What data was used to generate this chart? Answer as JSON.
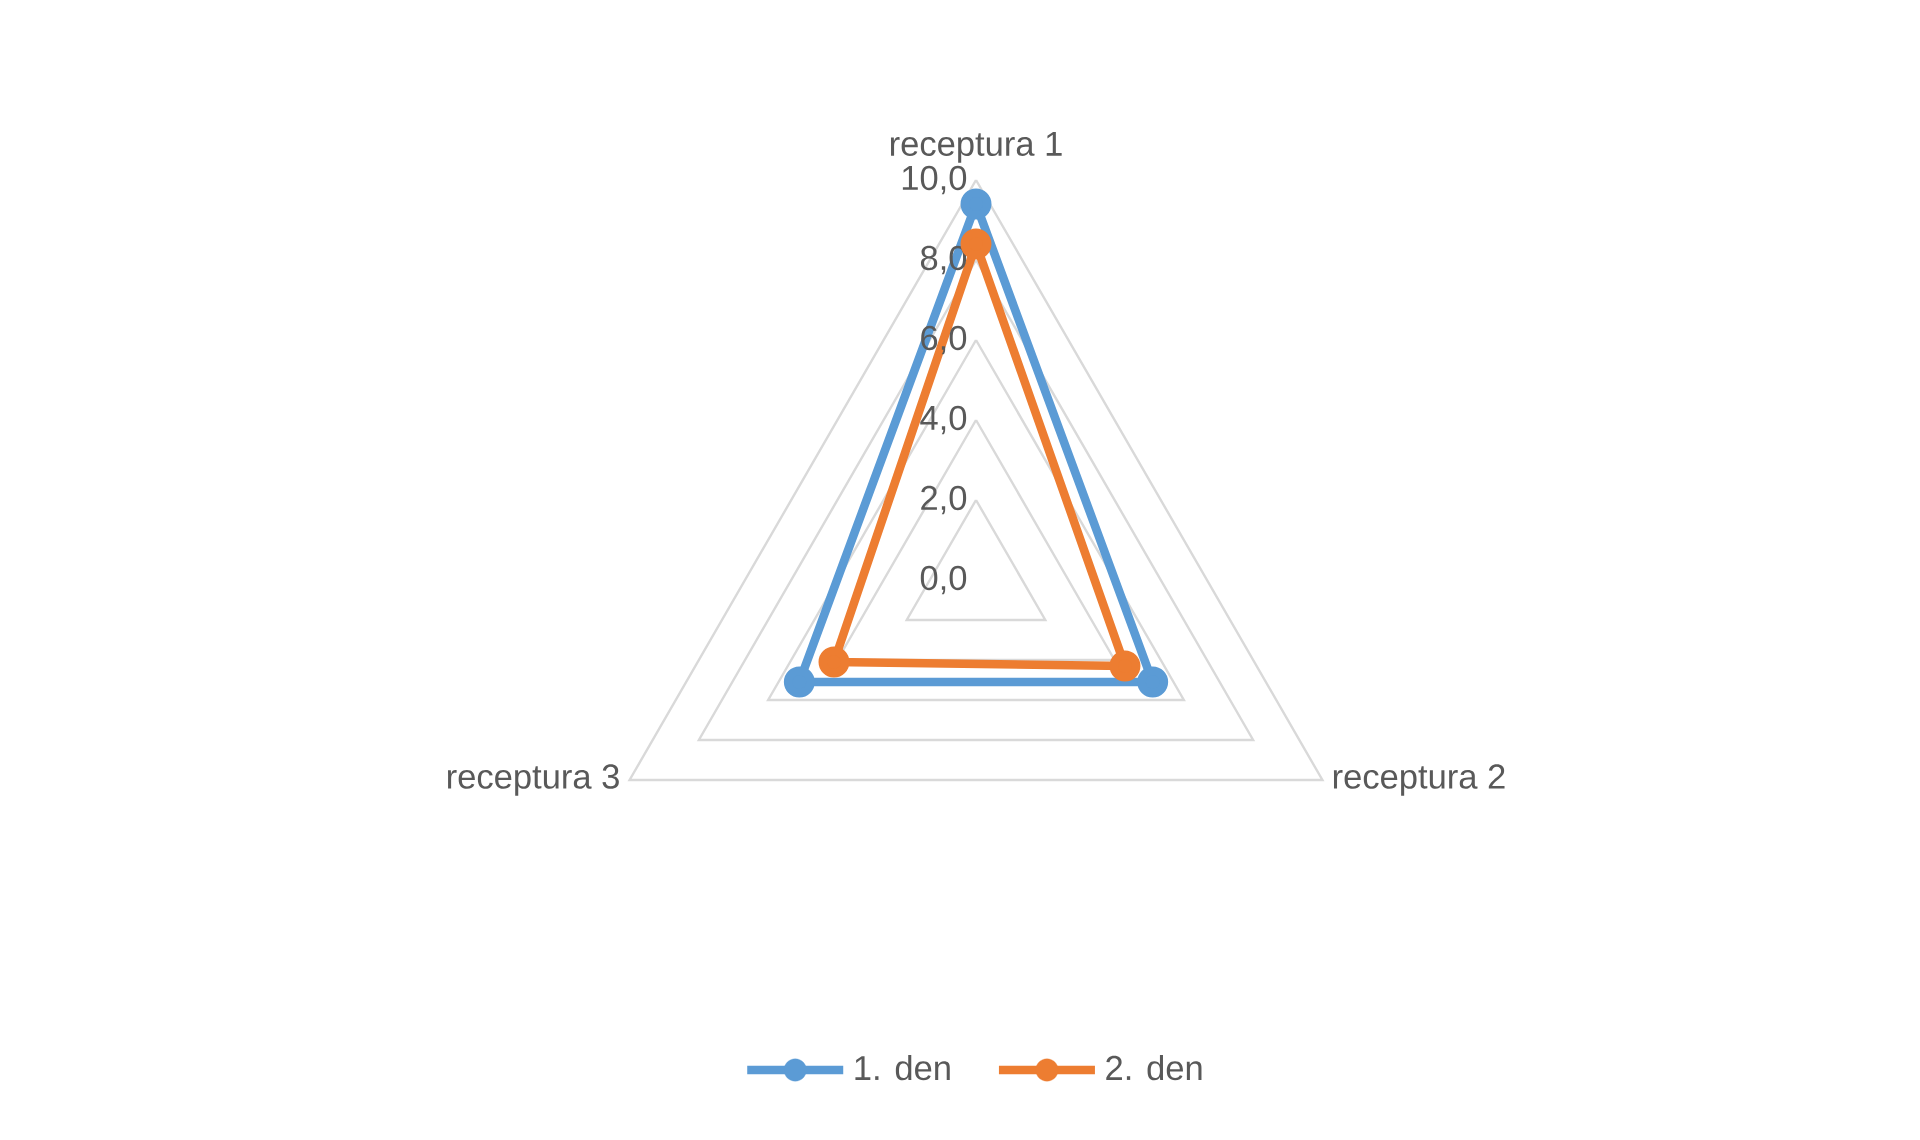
{
  "chart_data": {
    "type": "radar",
    "categories": [
      "receptura 1",
      "receptura 2",
      "receptura 3"
    ],
    "series": [
      {
        "name": "1. den",
        "color": "#5b9bd5",
        "values": [
          9.4,
          5.1,
          5.1
        ]
      },
      {
        "name": "2. den",
        "color": "#ed7d31",
        "values": [
          8.4,
          4.3,
          4.1
        ]
      }
    ],
    "ylim": [
      0,
      10
    ],
    "yticks": [
      {
        "value": 0,
        "label": "0,0"
      },
      {
        "value": 2,
        "label": "2,0"
      },
      {
        "value": 4,
        "label": "4,0"
      },
      {
        "value": 6,
        "label": "6,0"
      },
      {
        "value": 8,
        "label": "8,0"
      },
      {
        "value": 10,
        "label": "10,0"
      }
    ],
    "grid": true,
    "legend": "bottom",
    "marker": "circle",
    "line_style": "solid"
  }
}
